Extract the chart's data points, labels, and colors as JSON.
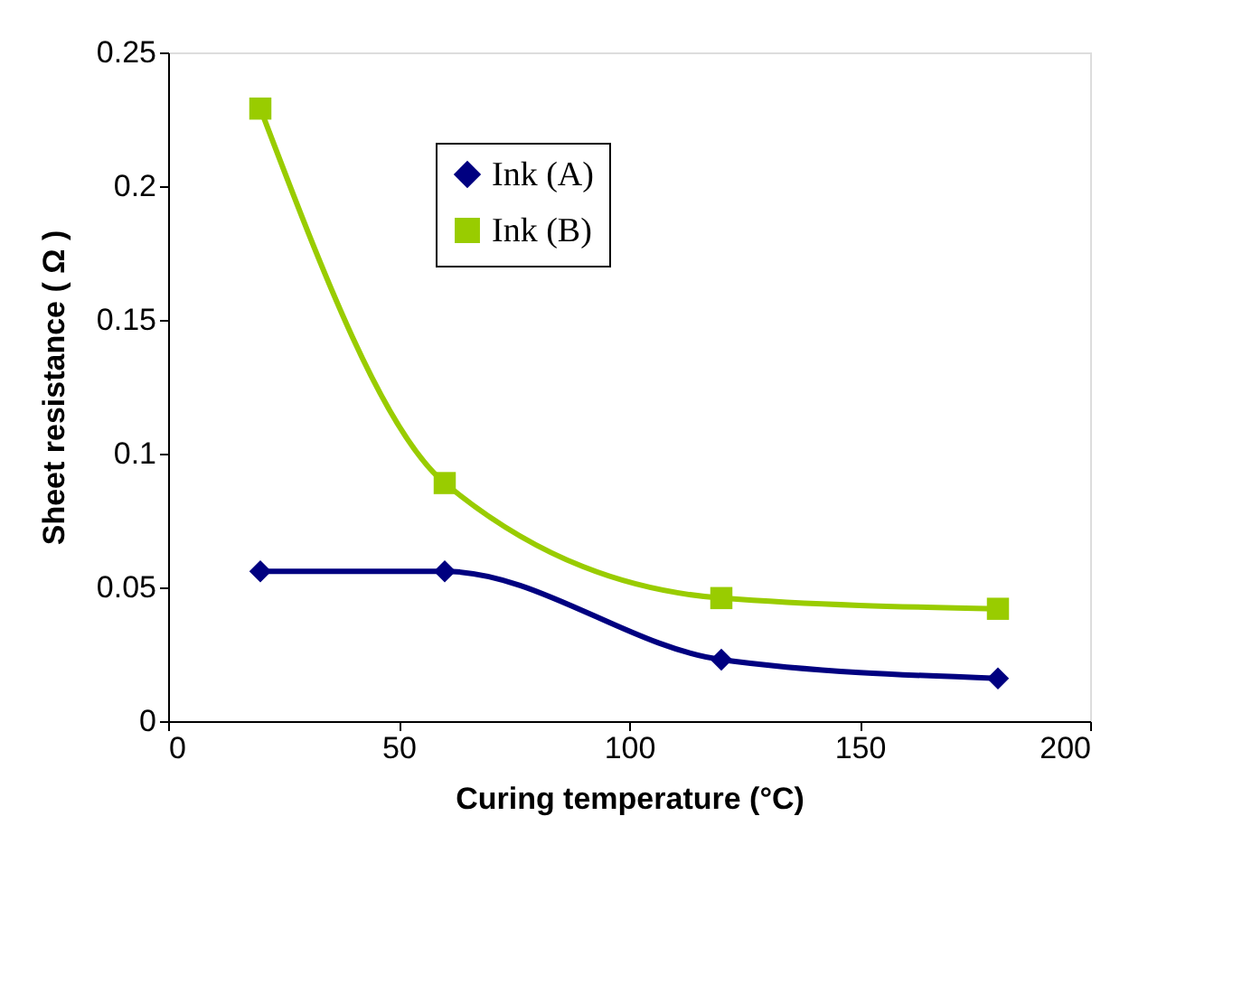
{
  "chart_data": {
    "type": "line",
    "xlabel": "Curing temperature (°C)",
    "ylabel": "Sheet resistance ( Ω )",
    "x": [
      20,
      60,
      120,
      180
    ],
    "series": [
      {
        "name": "Ink (A)",
        "color": "#000080",
        "marker": "diamond",
        "values": [
          0.056,
          0.056,
          0.023,
          0.016
        ]
      },
      {
        "name": "Ink (B)",
        "color": "#99cc00",
        "marker": "square",
        "values": [
          0.229,
          0.089,
          0.046,
          0.042
        ]
      }
    ],
    "xlim": [
      0,
      200
    ],
    "xticks": [
      0,
      50,
      100,
      150,
      200
    ],
    "ylim": [
      0,
      0.25
    ],
    "yticks": [
      0,
      0.05,
      0.1,
      0.15,
      0.2,
      0.25
    ],
    "grid": false,
    "legend": "top",
    "line_style": "solid"
  }
}
